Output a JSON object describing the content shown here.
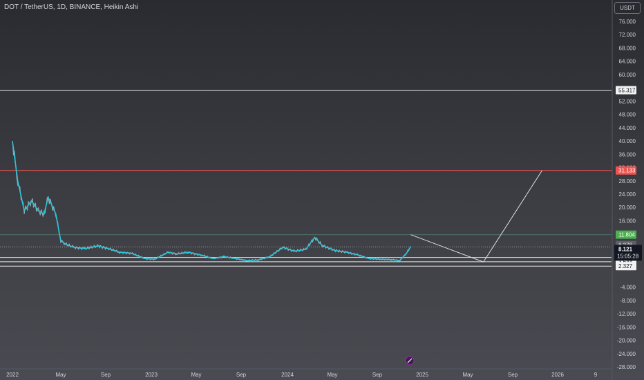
{
  "header": {
    "title": "DOT / TetherUS, 1D, BINANCE, Heikin Ashi",
    "currency": "USDT"
  },
  "colors": {
    "price_line": "#26c6da",
    "wick": "#c9ced6",
    "red_level": "#ef5350",
    "green_tag": "#4caf50",
    "white_level": "#e6e6e6",
    "axis_text": "#d1d4dc"
  },
  "chart_data": {
    "type": "line",
    "title": "DOT / TetherUS, 1D, BINANCE, Heikin Ashi",
    "xlabel": "",
    "ylabel": "",
    "grid": false,
    "x_ticks": [
      "2022",
      "May",
      "Sep",
      "2023",
      "May",
      "Sep",
      "2024",
      "May",
      "Sep",
      "2025",
      "May",
      "Sep",
      "2026",
      "9"
    ],
    "y_ticks": [
      "76.000",
      "72.000",
      "68.000",
      "64.000",
      "60.000",
      "52.000",
      "48.000",
      "44.000",
      "40.000",
      "36.000",
      "32.000",
      "28.000",
      "24.000",
      "20.000",
      "16.000",
      "-4.000",
      "-8.000",
      "-12.000",
      "-16.000",
      "-20.000",
      "-24.000",
      "-28.000"
    ],
    "ylim": [
      -28,
      80
    ],
    "series": [
      {
        "values": [
          [
            "2022-01-01",
            40
          ],
          [
            "2022-01-15",
            28
          ],
          [
            "2022-02-01",
            19
          ],
          [
            "2022-02-20",
            22
          ],
          [
            "2022-03-10",
            19
          ],
          [
            "2022-03-25",
            18
          ],
          [
            "2022-04-05",
            23
          ],
          [
            "2022-04-25",
            18
          ],
          [
            "2022-05-08",
            10
          ],
          [
            "2022-05-20",
            9
          ],
          [
            "2022-06-10",
            8
          ],
          [
            "2022-07-10",
            7.6
          ],
          [
            "2022-08-15",
            8.4
          ],
          [
            "2022-09-10",
            7.6
          ],
          [
            "2022-10-10",
            6.5
          ],
          [
            "2022-11-10",
            6.2
          ],
          [
            "2022-12-15",
            4.6
          ],
          [
            "2023-01-10",
            4.4
          ],
          [
            "2023-02-15",
            6.5
          ],
          [
            "2023-03-10",
            6.0
          ],
          [
            "2023-04-10",
            6.5
          ],
          [
            "2023-05-20",
            5.5
          ],
          [
            "2023-06-15",
            4.6
          ],
          [
            "2023-07-15",
            5.2
          ],
          [
            "2023-08-15",
            4.6
          ],
          [
            "2023-09-15",
            4.0
          ],
          [
            "2023-10-15",
            4.2
          ],
          [
            "2023-11-15",
            5.2
          ],
          [
            "2023-12-20",
            8.0
          ],
          [
            "2024-01-20",
            6.8
          ],
          [
            "2024-02-20",
            7.4
          ],
          [
            "2024-03-15",
            11.0
          ],
          [
            "2024-04-05",
            8.5
          ],
          [
            "2024-05-10",
            7.0
          ],
          [
            "2024-06-10",
            6.5
          ],
          [
            "2024-07-10",
            5.7
          ],
          [
            "2024-08-10",
            4.6
          ],
          [
            "2024-09-10",
            4.4
          ],
          [
            "2024-10-10",
            4.3
          ],
          [
            "2024-11-01",
            4.0
          ],
          [
            "2024-11-20",
            6.3
          ],
          [
            "2024-12-01",
            8.3
          ]
        ]
      }
    ],
    "annotations": {
      "horizontal_levels": [
        {
          "value": 55.317,
          "label": "55.317",
          "color": "white"
        },
        {
          "value": 31.133,
          "label": "31.133",
          "color": "red"
        },
        {
          "value": 11.804,
          "label": "11.804",
          "color": "green"
        },
        {
          "value": 4.946,
          "label": "4.946",
          "color": "white"
        },
        {
          "value": 3.644,
          "label": "3.644",
          "color": "white"
        },
        {
          "value": 2.327,
          "label": "2.327",
          "color": "white"
        }
      ],
      "price_tags": {
        "previous_close": "8.278",
        "last_price": "8.121",
        "countdown": "15:05:28"
      },
      "projection_path": [
        [
          "2024-12-01",
          11.8
        ],
        [
          "2025-06-15",
          3.6
        ],
        [
          "2025-11-20",
          31.1
        ]
      ]
    }
  }
}
